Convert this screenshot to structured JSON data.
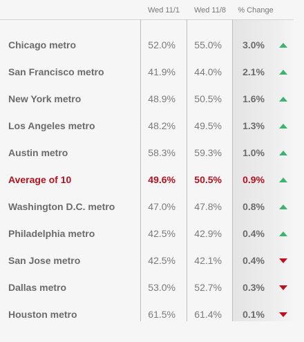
{
  "table": {
    "header": [
      "Wed 11/1",
      "Wed 11/8",
      "% Change"
    ],
    "rows": [
      {
        "name": "Chicago metro",
        "cells": [
          "52.0%",
          "55.0%",
          "3.0%"
        ],
        "arrow": "up"
      },
      {
        "name": "San Francisco metro",
        "cells": [
          "41.9%",
          "44.0%",
          "2.1%"
        ],
        "arrow": "up"
      },
      {
        "name": "New York metro",
        "cells": [
          "48.9%",
          "50.5%",
          "1.6%"
        ],
        "arrow": "up"
      },
      {
        "name": "Los Angeles metro",
        "cells": [
          "48.2%",
          "49.5%",
          "1.3%"
        ],
        "arrow": "up"
      },
      {
        "name": "Austin metro",
        "cells": [
          "58.3%",
          "59.3%",
          "1.0%"
        ],
        "arrow": "up"
      },
      {
        "name": "Average of 10",
        "cells": [
          "49.6%",
          "50.5%",
          "0.9%"
        ],
        "arrow": "up",
        "highlight": true
      },
      {
        "name": "Washington D.C. metro",
        "cells": [
          "47.0%",
          "47.8%",
          "0.8%"
        ],
        "arrow": "up"
      },
      {
        "name": "Philadelphia metro",
        "cells": [
          "42.5%",
          "42.9%",
          "0.4%"
        ],
        "arrow": "up"
      },
      {
        "name": "San Jose metro",
        "cells": [
          "42.5%",
          "42.1%",
          "0.4%"
        ],
        "arrow": "down"
      },
      {
        "name": "Dallas metro",
        "cells": [
          "53.0%",
          "52.7%",
          "0.3%"
        ],
        "arrow": "down"
      },
      {
        "name": "Houston metro",
        "cells": [
          "61.5%",
          "61.4%",
          "0.1%"
        ],
        "arrow": "down"
      }
    ]
  }
}
